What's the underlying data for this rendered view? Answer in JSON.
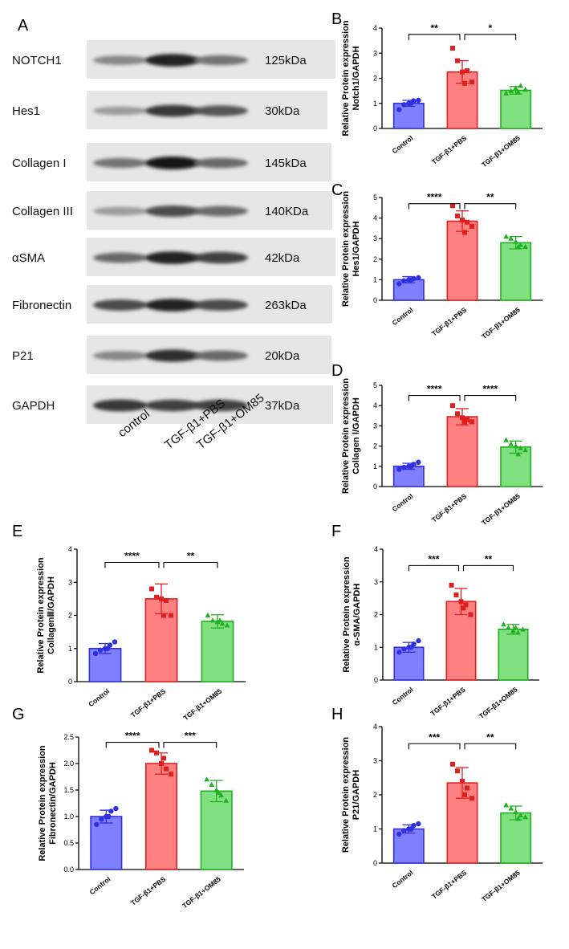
{
  "blot": {
    "letter": "A",
    "rows": [
      {
        "name": "NOTCH1",
        "kda": "125kDa"
      },
      {
        "name": "Hes1",
        "kda": "30kDa"
      },
      {
        "name": "Collagen I",
        "kda": "145kDa"
      },
      {
        "name": "Collagen III",
        "kda": "140KDa"
      },
      {
        "name": "αSMA",
        "kda": "42kDa"
      },
      {
        "name": "Fibronectin",
        "kda": "263kDa"
      },
      {
        "name": "P21",
        "kda": "20kDa"
      },
      {
        "name": "GAPDH",
        "kda": "37kDa"
      }
    ],
    "lanes": [
      "control",
      "TGF-β1+PBS",
      "TGF-β1+OM85"
    ]
  },
  "colors": {
    "control_fill": "#8080ff",
    "control_stroke": "#3030e0",
    "pbs_fill": "#ff8080",
    "pbs_stroke": "#e02020",
    "om85_fill": "#80e080",
    "om85_stroke": "#20b020"
  },
  "chart_data": [
    {
      "panel": "B",
      "type": "bar",
      "ylabel": [
        "Relative Protein expression",
        "Notch1/GAPDH"
      ],
      "categories": [
        "Control",
        "TGF-β1+PBS",
        "TGF-β1+OM85"
      ],
      "values": [
        1.0,
        2.25,
        1.52
      ],
      "errors": [
        0.12,
        0.45,
        0.15
      ],
      "points": [
        [
          0.75,
          0.95,
          1.0,
          1.1,
          1.12,
          1.0
        ],
        [
          3.2,
          2.7,
          2.25,
          2.3,
          1.85,
          1.8
        ],
        [
          1.4,
          1.5,
          1.6,
          1.7,
          1.55,
          1.45
        ]
      ],
      "ylim": [
        0,
        4
      ],
      "yticks": [
        "0",
        "1",
        "2",
        "3",
        "4"
      ],
      "significance": [
        {
          "from": 0,
          "to": 1,
          "label": "**",
          "y": 3.75
        },
        {
          "from": 1,
          "to": 2,
          "label": "*",
          "y": 3.75
        }
      ]
    },
    {
      "panel": "C",
      "type": "bar",
      "ylabel": [
        "Relative Protein expression",
        "Hes1/GAPDH"
      ],
      "categories": [
        "Control",
        "TGF-β1+PBS",
        "TGF-β1+OM85"
      ],
      "values": [
        1.0,
        3.85,
        2.8
      ],
      "errors": [
        0.15,
        0.5,
        0.3
      ],
      "points": [
        [
          0.8,
          0.95,
          1.0,
          1.05,
          1.1,
          1.0
        ],
        [
          4.6,
          4.1,
          3.9,
          3.8,
          3.6,
          3.3
        ],
        [
          3.1,
          3.0,
          2.85,
          2.7,
          2.6,
          2.6
        ]
      ],
      "ylim": [
        0,
        5
      ],
      "yticks": [
        "0",
        "1",
        "2",
        "3",
        "4",
        "5"
      ],
      "significance": [
        {
          "from": 0,
          "to": 1,
          "label": "****",
          "y": 4.7
        },
        {
          "from": 1,
          "to": 2,
          "label": "**",
          "y": 4.7
        }
      ]
    },
    {
      "panel": "D",
      "type": "bar",
      "ylabel": [
        "Relative Protein expression",
        "Collagen Ⅰ/GAPDH"
      ],
      "categories": [
        "Control",
        "TGF-β1+PBS",
        "TGF-β1+OM85"
      ],
      "values": [
        1.0,
        3.45,
        1.95
      ],
      "errors": [
        0.15,
        0.4,
        0.3
      ],
      "points": [
        [
          0.85,
          0.95,
          1.0,
          1.1,
          1.2,
          1.0
        ],
        [
          4.0,
          3.6,
          3.4,
          3.3,
          3.2,
          3.2
        ],
        [
          2.3,
          2.1,
          2.0,
          1.9,
          1.8,
          1.6
        ]
      ],
      "ylim": [
        0,
        5
      ],
      "yticks": [
        "0",
        "1",
        "2",
        "3",
        "4",
        "5"
      ],
      "significance": [
        {
          "from": 0,
          "to": 1,
          "label": "****",
          "y": 4.5
        },
        {
          "from": 1,
          "to": 2,
          "label": "****",
          "y": 4.5
        }
      ]
    },
    {
      "panel": "E",
      "type": "bar",
      "ylabel": [
        "Relative Protein expression",
        "CollagenⅢ/GAPDH"
      ],
      "categories": [
        "Control",
        "TGF-β1+PBS",
        "TGF-β1+OM85"
      ],
      "values": [
        1.0,
        2.5,
        1.82
      ],
      "errors": [
        0.15,
        0.45,
        0.2
      ],
      "points": [
        [
          0.85,
          0.95,
          1.0,
          1.1,
          1.2,
          1.0
        ],
        [
          2.8,
          2.55,
          2.5,
          2.45,
          2.0,
          2.0
        ],
        [
          2.0,
          1.85,
          1.8,
          1.75,
          1.7,
          1.85
        ]
      ],
      "ylim": [
        0,
        4
      ],
      "yticks": [
        "0",
        "1",
        "2",
        "3",
        "4"
      ],
      "significance": [
        {
          "from": 0,
          "to": 1,
          "label": "****",
          "y": 3.6
        },
        {
          "from": 1,
          "to": 2,
          "label": "**",
          "y": 3.6
        }
      ]
    },
    {
      "panel": "F",
      "type": "bar",
      "ylabel": [
        "Relative Protein expression",
        "α-SMA/GAPDH"
      ],
      "categories": [
        "Control",
        "TGF-β1+PBS",
        "TGF-β1+OM85"
      ],
      "values": [
        1.0,
        2.4,
        1.55
      ],
      "errors": [
        0.15,
        0.4,
        0.15
      ],
      "points": [
        [
          0.85,
          0.95,
          1.0,
          1.1,
          1.2,
          1.0
        ],
        [
          2.9,
          2.6,
          2.4,
          2.3,
          2.0,
          2.2
        ],
        [
          1.7,
          1.6,
          1.5,
          1.45,
          1.55,
          1.6
        ]
      ],
      "ylim": [
        0,
        4
      ],
      "yticks": [
        "0",
        "1",
        "2",
        "3",
        "4"
      ],
      "significance": [
        {
          "from": 0,
          "to": 1,
          "label": "***",
          "y": 3.5
        },
        {
          "from": 1,
          "to": 2,
          "label": "**",
          "y": 3.5
        }
      ]
    },
    {
      "panel": "G",
      "type": "bar",
      "ylabel": [
        "Relative Protein expression",
        "Fibronectin/GAPDH"
      ],
      "categories": [
        "Control",
        "TGF-β1+PBS",
        "TGF-β1+OM85"
      ],
      "values": [
        1.0,
        2.0,
        1.48
      ],
      "errors": [
        0.12,
        0.2,
        0.2
      ],
      "points": [
        [
          0.85,
          0.95,
          1.0,
          1.1,
          1.15,
          1.0
        ],
        [
          2.25,
          2.2,
          2.0,
          1.9,
          1.8,
          2.1
        ],
        [
          1.7,
          1.6,
          1.5,
          1.4,
          1.3,
          1.45
        ]
      ],
      "ylim": [
        0,
        2.5
      ],
      "yticks": [
        "0.0",
        "0.5",
        "1.0",
        "1.5",
        "2.0",
        "2.5"
      ],
      "significance": [
        {
          "from": 0,
          "to": 1,
          "label": "****",
          "y": 2.4
        },
        {
          "from": 1,
          "to": 2,
          "label": "***",
          "y": 2.4
        }
      ]
    },
    {
      "panel": "H",
      "type": "bar",
      "ylabel": [
        "Relative Protein expression",
        "P21/GAPDH"
      ],
      "categories": [
        "Control",
        "TGF-β1+PBS",
        "TGF-β1+OM85"
      ],
      "values": [
        1.0,
        2.35,
        1.47
      ],
      "errors": [
        0.12,
        0.45,
        0.2
      ],
      "points": [
        [
          0.85,
          0.95,
          1.0,
          1.1,
          1.15,
          1.0
        ],
        [
          2.9,
          2.7,
          2.4,
          2.2,
          1.9,
          2.0
        ],
        [
          1.7,
          1.6,
          1.5,
          1.4,
          1.35,
          1.3
        ]
      ],
      "ylim": [
        0,
        4
      ],
      "yticks": [
        "0",
        "1",
        "2",
        "3",
        "4"
      ],
      "significance": [
        {
          "from": 0,
          "to": 1,
          "label": "***",
          "y": 3.5
        },
        {
          "from": 1,
          "to": 2,
          "label": "**",
          "y": 3.5
        }
      ]
    }
  ]
}
